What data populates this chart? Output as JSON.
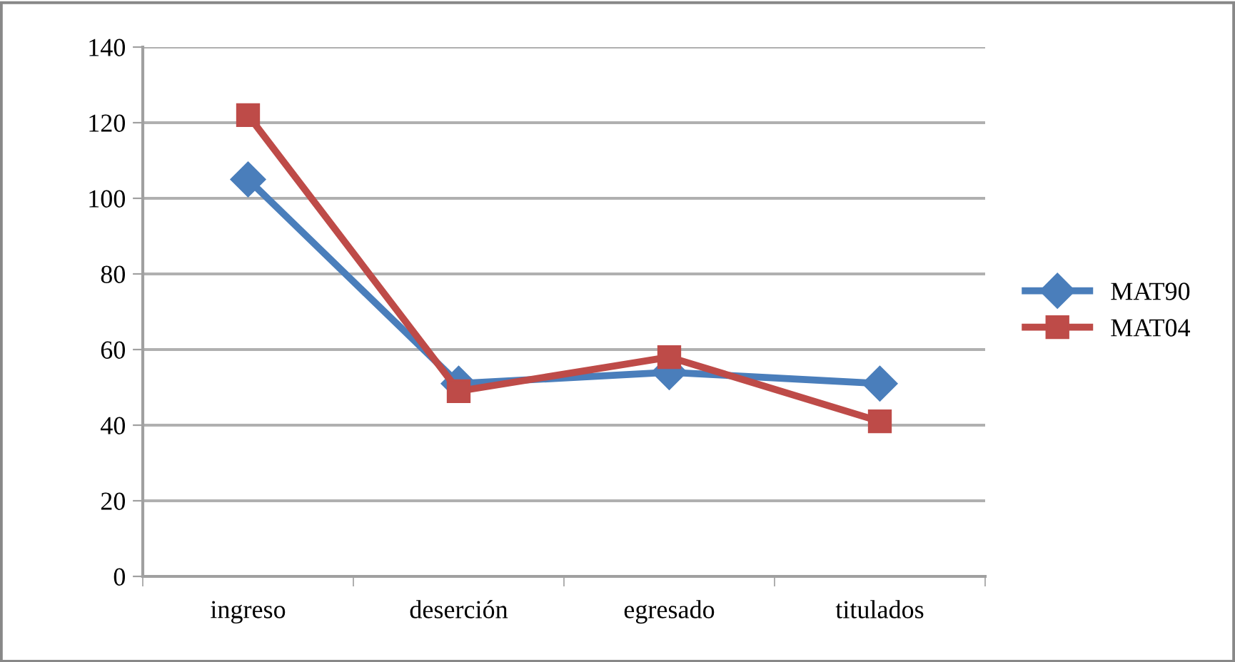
{
  "chart_data": {
    "type": "line",
    "categories": [
      "ingreso",
      "deserción",
      "egresado",
      "titulados"
    ],
    "series": [
      {
        "name": "MAT90",
        "color": "#4a7ebb",
        "values": [
          105,
          51,
          54,
          51
        ],
        "marker": "diamond"
      },
      {
        "name": "MAT04",
        "color": "#be4b48",
        "values": [
          122,
          49,
          58,
          41
        ],
        "marker": "square"
      }
    ],
    "ylim": [
      0,
      140
    ],
    "yticks": [
      0,
      20,
      40,
      60,
      80,
      100,
      120,
      140
    ],
    "grid": "y",
    "legend": "right",
    "line_style": "solid"
  }
}
